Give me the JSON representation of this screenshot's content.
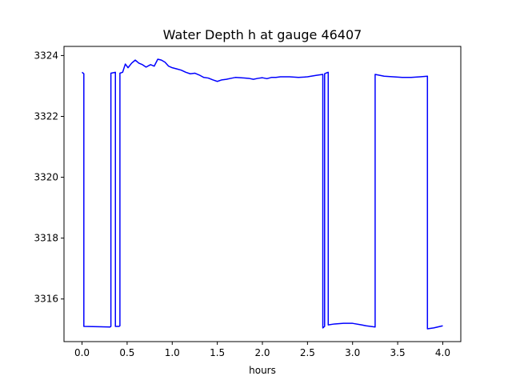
{
  "chart_data": {
    "type": "line",
    "title": "Water Depth h at gauge 46407",
    "xlabel": "hours",
    "ylabel": "",
    "xlim": [
      -0.2,
      4.2
    ],
    "ylim": [
      3314.6,
      3324.3
    ],
    "xticks": [
      0.0,
      0.5,
      1.0,
      1.5,
      2.0,
      2.5,
      3.0,
      3.5,
      4.0
    ],
    "xtick_labels": [
      "0.0",
      "0.5",
      "1.0",
      "1.5",
      "2.0",
      "2.5",
      "3.0",
      "3.5",
      "4.0"
    ],
    "yticks": [
      3316,
      3318,
      3320,
      3322,
      3324
    ],
    "ytick_labels": [
      "3316",
      "3318",
      "3320",
      "3322",
      "3324"
    ],
    "grid": false,
    "series": [
      {
        "color": "#0000ff",
        "x": [
          0.0,
          0.02,
          0.02,
          0.31,
          0.32,
          0.32,
          0.37,
          0.37,
          0.41,
          0.42,
          0.42,
          0.45,
          0.48,
          0.51,
          0.55,
          0.59,
          0.63,
          0.67,
          0.71,
          0.76,
          0.8,
          0.84,
          0.88,
          0.92,
          0.96,
          1.0,
          1.05,
          1.1,
          1.15,
          1.2,
          1.25,
          1.3,
          1.35,
          1.4,
          1.45,
          1.5,
          1.55,
          1.6,
          1.65,
          1.7,
          1.75,
          1.8,
          1.85,
          1.9,
          1.95,
          2.0,
          2.05,
          2.1,
          2.15,
          2.2,
          2.3,
          2.4,
          2.5,
          2.6,
          2.67,
          2.67,
          2.69,
          2.69,
          2.72,
          2.73,
          2.73,
          2.8,
          2.9,
          3.0,
          3.1,
          3.15,
          3.2,
          3.25,
          3.25,
          3.35,
          3.45,
          3.55,
          3.65,
          3.75,
          3.83,
          3.83,
          3.9,
          4.0
        ],
        "y": [
          3323.45,
          3323.4,
          3315.1,
          3315.08,
          3315.1,
          3323.42,
          3323.45,
          3315.1,
          3315.1,
          3315.12,
          3323.42,
          3323.45,
          3323.72,
          3323.6,
          3323.75,
          3323.85,
          3323.75,
          3323.7,
          3323.62,
          3323.7,
          3323.65,
          3323.88,
          3323.85,
          3323.78,
          3323.65,
          3323.6,
          3323.56,
          3323.52,
          3323.45,
          3323.4,
          3323.42,
          3323.36,
          3323.28,
          3323.26,
          3323.2,
          3323.15,
          3323.2,
          3323.22,
          3323.25,
          3323.28,
          3323.27,
          3323.26,
          3323.25,
          3323.22,
          3323.25,
          3323.27,
          3323.24,
          3323.28,
          3323.28,
          3323.3,
          3323.3,
          3323.28,
          3323.3,
          3323.35,
          3323.38,
          3315.05,
          3315.1,
          3323.4,
          3323.44,
          3323.45,
          3315.15,
          3315.18,
          3315.2,
          3315.2,
          3315.15,
          3315.12,
          3315.1,
          3315.08,
          3323.38,
          3323.32,
          3323.3,
          3323.28,
          3323.28,
          3323.3,
          3323.32,
          3315.02,
          3315.05,
          3315.12
        ]
      }
    ]
  }
}
